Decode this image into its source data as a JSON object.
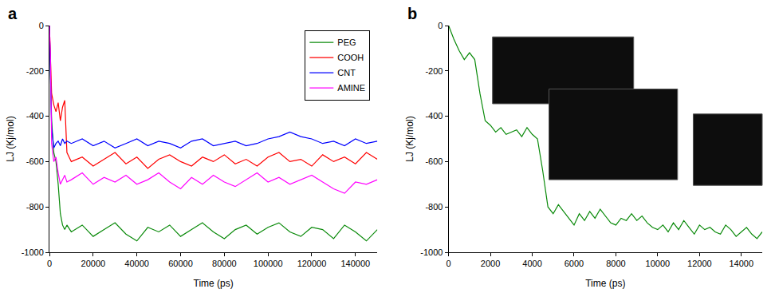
{
  "chart_data": [
    {
      "type": "line",
      "title": "a",
      "xlabel": "Time (ps)",
      "ylabel": "LJ (Kj/mol)",
      "xlim": [
        0,
        150000
      ],
      "xticks": [
        0,
        20000,
        40000,
        60000,
        80000,
        100000,
        120000,
        140000
      ],
      "ylim": [
        -1000,
        0
      ],
      "yticks": [
        -1000,
        -800,
        -600,
        -400,
        -200,
        0
      ],
      "legend": "top right",
      "x": [
        0,
        500,
        1000,
        2000,
        3000,
        4000,
        5000,
        6000,
        7000,
        8000,
        10000,
        15000,
        20000,
        25000,
        30000,
        35000,
        40000,
        45000,
        50000,
        55000,
        60000,
        65000,
        70000,
        75000,
        80000,
        85000,
        90000,
        95000,
        100000,
        105000,
        110000,
        115000,
        120000,
        125000,
        130000,
        135000,
        140000,
        145000,
        150000
      ],
      "series": [
        {
          "name": "PEG",
          "color": "#0a8a0a",
          "values": [
            0,
            -180,
            -420,
            -560,
            -600,
            -700,
            -830,
            -880,
            -900,
            -880,
            -910,
            -880,
            -930,
            -900,
            -870,
            -920,
            -950,
            -890,
            -910,
            -880,
            -930,
            -900,
            -870,
            -910,
            -940,
            -900,
            -880,
            -920,
            -890,
            -870,
            -910,
            -930,
            -890,
            -900,
            -940,
            -880,
            -910,
            -950,
            -900
          ]
        },
        {
          "name": "COOH",
          "color": "#ff0000",
          "values": [
            0,
            -120,
            -300,
            -350,
            -380,
            -340,
            -420,
            -360,
            -330,
            -560,
            -600,
            -580,
            -620,
            -590,
            -560,
            -610,
            -580,
            -630,
            -590,
            -570,
            -600,
            -620,
            -580,
            -600,
            -570,
            -610,
            -590,
            -620,
            -580,
            -560,
            -600,
            -590,
            -620,
            -570,
            -600,
            -580,
            -610,
            -560,
            -590
          ]
        },
        {
          "name": "CNT",
          "color": "#0000ff",
          "values": [
            0,
            -200,
            -450,
            -540,
            -520,
            -510,
            -530,
            -500,
            -520,
            -510,
            -520,
            -500,
            -530,
            -510,
            -540,
            -520,
            -500,
            -530,
            -510,
            -520,
            -540,
            -510,
            -500,
            -530,
            -520,
            -510,
            -530,
            -520,
            -500,
            -490,
            -470,
            -490,
            -500,
            -520,
            -510,
            -530,
            -500,
            -520,
            -510
          ]
        },
        {
          "name": "AMINE",
          "color": "#ff00ff",
          "values": [
            0,
            -150,
            -520,
            -600,
            -580,
            -650,
            -700,
            -680,
            -660,
            -690,
            -680,
            -650,
            -700,
            -670,
            -690,
            -660,
            -700,
            -680,
            -650,
            -690,
            -720,
            -670,
            -700,
            -660,
            -690,
            -710,
            -680,
            -650,
            -690,
            -670,
            -700,
            -680,
            -660,
            -690,
            -720,
            -740,
            -690,
            -700,
            -680
          ]
        }
      ]
    },
    {
      "type": "line",
      "title": "b",
      "xlabel": "Time (ps)",
      "ylabel": "LJ (Kj/mol)",
      "xlim": [
        0,
        15000
      ],
      "xticks": [
        0,
        2000,
        4000,
        6000,
        8000,
        10000,
        12000,
        14000
      ],
      "ylim": [
        -1000,
        0
      ],
      "yticks": [
        -1000,
        -800,
        -600,
        -400,
        -200,
        0
      ],
      "x": [
        0,
        250,
        500,
        750,
        1000,
        1250,
        1500,
        1750,
        2000,
        2250,
        2500,
        2750,
        3000,
        3250,
        3500,
        3750,
        4000,
        4250,
        4500,
        4750,
        5000,
        5250,
        5500,
        5750,
        6000,
        6250,
        6500,
        6750,
        7000,
        7250,
        7500,
        7750,
        8000,
        8250,
        8500,
        8750,
        9000,
        9250,
        9500,
        9750,
        10000,
        10250,
        10500,
        10750,
        11000,
        11250,
        11500,
        11750,
        12000,
        12250,
        12500,
        12750,
        13000,
        13250,
        13500,
        13750,
        14000,
        14250,
        14500,
        14750,
        15000
      ],
      "series": [
        {
          "color": "#0a8a0a",
          "values": [
            0,
            -60,
            -110,
            -150,
            -120,
            -150,
            -300,
            -420,
            -440,
            -470,
            -450,
            -480,
            -470,
            -460,
            -490,
            -450,
            -480,
            -500,
            -640,
            -800,
            -830,
            -790,
            -820,
            -850,
            -880,
            -830,
            -860,
            -820,
            -850,
            -810,
            -840,
            -870,
            -880,
            -850,
            -860,
            -830,
            -860,
            -840,
            -870,
            -890,
            -900,
            -880,
            -910,
            -870,
            -900,
            -860,
            -890,
            -920,
            -880,
            -900,
            -890,
            -910,
            -920,
            -880,
            -900,
            -930,
            -910,
            -890,
            -920,
            -940,
            -910
          ]
        }
      ]
    }
  ]
}
